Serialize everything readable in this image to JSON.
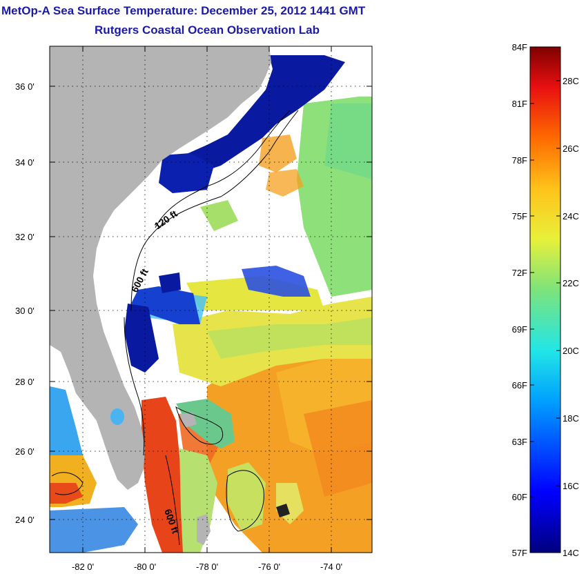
{
  "title": {
    "line1": "MetOp-A Sea Surface Temperature:  December 25, 2012 1441 GMT",
    "line2": "Rutgers Coastal Ocean Observation Lab"
  },
  "map": {
    "lat_ticks": [
      "36 0'",
      "34 0'",
      "32 0'",
      "30 0'",
      "28 0'",
      "26 0'",
      "24 0'"
    ],
    "lon_ticks": [
      "-82 0'",
      "-80 0'",
      "-78 0'",
      "-76 0'",
      "-74 0'"
    ],
    "contour_labels": [
      "120 ft",
      "600 ft",
      "600 ft"
    ],
    "colors": {
      "land": "#b4b4b4",
      "cloud": "#ffffff",
      "cold": "#0a1aa0",
      "green": "#6ad86a",
      "yellow": "#f6e94a",
      "orange": "#f59a1e",
      "red": "#e8441a"
    }
  },
  "colorbar": {
    "fahrenheit_labels": [
      "84F",
      "81F",
      "78F",
      "75F",
      "72F",
      "69F",
      "66F",
      "63F",
      "60F",
      "57F"
    ],
    "celsius_labels": [
      "28C",
      "26C",
      "24C",
      "22C",
      "20C",
      "18C",
      "16C",
      "14C"
    ],
    "range_f": [
      57,
      84
    ],
    "range_c": [
      14,
      29
    ]
  }
}
